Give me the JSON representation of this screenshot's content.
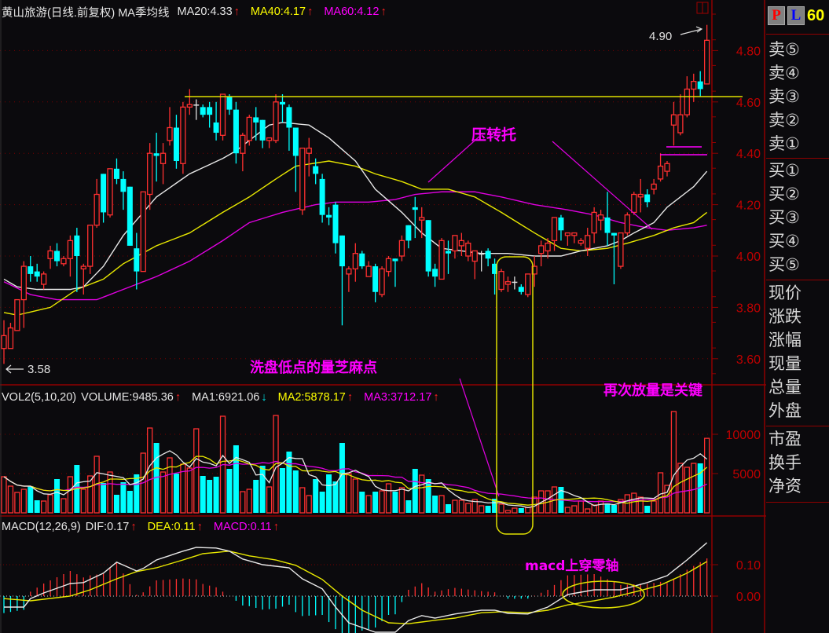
{
  "header": {
    "title": "黄山旅游(日线.前复权) MA季均线",
    "ma20": "MA20:4.33",
    "ma40": "MA40:4.17",
    "ma60": "MA60:4.12"
  },
  "volume_header": {
    "name": "VOL2(5,10,20)",
    "volume": "VOLUME:9485.36",
    "ma1": "MA1:6921.06",
    "ma2": "MA2:5878.17",
    "ma3": "MA3:3712.17"
  },
  "macd_header": {
    "name": "MACD(12,26,9)",
    "dif": "DIF:0.17",
    "dea": "DEA:0.11",
    "macd": "MACD:0.11"
  },
  "right_panel": {
    "p_button": "P",
    "l_button": "L",
    "period": "60",
    "sell": [
      "卖⑤",
      "卖④",
      "卖③",
      "卖②",
      "卖①"
    ],
    "buy": [
      "买①",
      "买②",
      "买③",
      "买④",
      "买⑤"
    ],
    "quote": [
      "现价",
      "涨跌",
      "涨幅",
      "现量",
      "总量",
      "外盘"
    ],
    "fundamentals": [
      "市盈",
      "换手",
      "净资"
    ]
  },
  "annotations": {
    "high_label": "4.90",
    "low_label": "3.58",
    "support_resistance": "压转托",
    "washout_volume": "洗盘低点的量芝麻点",
    "volume_key": "再次放量是关键",
    "macd_cross": "macd上穿零轴"
  },
  "colors": {
    "up": "#ff3030",
    "down": "#00ffff",
    "ma20": "#e8e8e8",
    "ma40": "#e8e800",
    "ma60": "#e000e0",
    "axis": "#c00000",
    "annotation": "#ff00ff"
  },
  "chart_data": {
    "type": "candlestick",
    "title": "黄山旅游(日线.前复权)",
    "price_axis": {
      "ticks": [
        "4.80",
        "4.60",
        "4.40",
        "4.20",
        "4.00",
        "3.80",
        "3.60"
      ],
      "range": [
        3.55,
        4.95
      ]
    },
    "volume_axis": {
      "ticks": [
        "10000",
        "5000"
      ],
      "range": [
        0,
        10500
      ]
    },
    "macd_axis": {
      "ticks": [
        "0.10",
        "0.00"
      ]
    },
    "candles": [
      [
        3.64,
        3.75,
        3.58,
        3.69
      ],
      [
        3.64,
        3.74,
        3.64,
        3.72
      ],
      [
        3.71,
        3.83,
        3.71,
        3.83
      ],
      [
        3.83,
        3.98,
        3.72,
        3.96
      ],
      [
        3.96,
        4.0,
        3.9,
        3.93
      ],
      [
        3.94,
        3.97,
        3.9,
        3.92
      ],
      [
        3.89,
        3.94,
        3.87,
        3.93
      ],
      [
        3.99,
        4.04,
        3.95,
        4.02
      ],
      [
        4.02,
        4.05,
        3.96,
        3.98
      ],
      [
        3.97,
        4.0,
        3.96,
        3.99
      ],
      [
        3.99,
        4.08,
        3.92,
        4.06
      ],
      [
        4.08,
        4.11,
        3.86,
        4.0
      ],
      [
        3.95,
        3.97,
        3.85,
        3.96
      ],
      [
        3.96,
        4.12,
        3.93,
        4.12
      ],
      [
        4.12,
        4.3,
        4.11,
        4.24
      ],
      [
        4.32,
        4.32,
        4.13,
        4.17
      ],
      [
        4.16,
        4.34,
        4.15,
        4.34
      ],
      [
        4.34,
        4.38,
        4.28,
        4.3
      ],
      [
        4.3,
        4.33,
        4.18,
        4.25
      ],
      [
        4.27,
        4.27,
        4.04,
        4.04
      ],
      [
        4.03,
        4.09,
        3.87,
        3.94
      ],
      [
        3.94,
        4.25,
        3.94,
        4.25
      ],
      [
        4.24,
        4.44,
        4.18,
        4.4
      ],
      [
        4.4,
        4.48,
        4.29,
        4.39
      ],
      [
        4.36,
        4.44,
        4.28,
        4.4
      ],
      [
        4.45,
        4.58,
        4.43,
        4.5
      ],
      [
        4.5,
        4.55,
        4.34,
        4.37
      ],
      [
        4.36,
        4.6,
        4.32,
        4.58
      ],
      [
        4.58,
        4.65,
        4.55,
        4.59
      ],
      [
        4.59,
        4.61,
        4.53,
        4.59
      ],
      [
        4.58,
        4.59,
        4.54,
        4.55
      ],
      [
        4.58,
        4.6,
        4.5,
        4.55
      ],
      [
        4.52,
        4.6,
        4.45,
        4.48
      ],
      [
        4.47,
        4.63,
        4.45,
        4.63
      ],
      [
        4.62,
        4.63,
        4.55,
        4.57
      ],
      [
        4.57,
        4.6,
        4.36,
        4.4
      ],
      [
        4.4,
        4.48,
        4.33,
        4.47
      ],
      [
        4.45,
        4.55,
        4.43,
        4.54
      ],
      [
        4.54,
        4.58,
        4.45,
        4.52
      ],
      [
        4.53,
        4.53,
        4.42,
        4.45
      ],
      [
        4.45,
        4.46,
        4.42,
        4.46
      ],
      [
        4.45,
        4.63,
        4.44,
        4.6
      ],
      [
        4.6,
        4.63,
        4.52,
        4.59
      ],
      [
        4.58,
        4.59,
        4.41,
        4.5
      ],
      [
        4.5,
        4.5,
        4.25,
        4.39
      ],
      [
        4.18,
        4.42,
        4.16,
        4.42
      ],
      [
        4.4,
        4.46,
        4.31,
        4.42
      ],
      [
        4.35,
        4.38,
        4.28,
        4.32
      ],
      [
        4.3,
        4.32,
        4.13,
        4.16
      ],
      [
        4.16,
        4.19,
        4.12,
        4.15
      ],
      [
        4.2,
        4.21,
        4.01,
        4.05
      ],
      [
        4.08,
        4.08,
        3.73,
        3.96
      ],
      [
        3.93,
        3.96,
        3.86,
        3.95
      ],
      [
        3.95,
        4.05,
        3.9,
        4.01
      ],
      [
        4.01,
        4.02,
        3.95,
        3.96
      ],
      [
        3.92,
        3.98,
        3.92,
        3.96
      ],
      [
        3.96,
        3.97,
        3.82,
        3.86
      ],
      [
        3.85,
        3.96,
        3.84,
        3.95
      ],
      [
        3.94,
        4.0,
        3.92,
        3.99
      ],
      [
        3.99,
        3.99,
        3.88,
        3.98
      ],
      [
        4.0,
        4.08,
        3.98,
        4.06
      ],
      [
        4.12,
        4.12,
        4.03,
        4.06
      ],
      [
        4.19,
        4.23,
        4.07,
        4.18
      ],
      [
        4.14,
        4.19,
        4.07,
        4.15
      ],
      [
        4.14,
        4.14,
        3.92,
        3.94
      ],
      [
        3.95,
        3.97,
        3.88,
        3.92
      ],
      [
        3.91,
        4.07,
        3.91,
        4.06
      ],
      [
        4.02,
        4.06,
        3.93,
        4.01
      ],
      [
        4.02,
        4.08,
        3.99,
        4.08
      ],
      [
        4.04,
        4.09,
        4.0,
        4.06
      ],
      [
        4.0,
        4.06,
        3.98,
        4.05
      ],
      [
        3.98,
        4.02,
        3.91,
        4.02
      ],
      [
        4.01,
        4.02,
        3.94,
        4.01
      ],
      [
        4.02,
        4.03,
        3.96,
        3.99
      ],
      [
        3.97,
        3.99,
        3.85,
        3.93
      ],
      [
        3.87,
        3.95,
        3.86,
        3.94
      ],
      [
        3.89,
        3.92,
        3.86,
        3.9
      ],
      [
        3.9,
        3.92,
        3.87,
        3.9
      ],
      [
        3.88,
        3.89,
        3.85,
        3.86
      ],
      [
        3.85,
        3.93,
        3.84,
        3.93
      ],
      [
        3.93,
        4.0,
        3.88,
        3.96
      ],
      [
        4.01,
        4.06,
        3.96,
        4.04
      ],
      [
        4.02,
        4.07,
        3.99,
        4.05
      ],
      [
        4.06,
        4.15,
        4.02,
        4.15
      ],
      [
        4.15,
        4.16,
        4.06,
        4.1
      ],
      [
        4.08,
        4.09,
        4.04,
        4.09
      ],
      [
        4.08,
        4.09,
        4.05,
        4.09
      ],
      [
        4.05,
        4.07,
        4.04,
        4.06
      ],
      [
        4.03,
        4.11,
        4.0,
        4.08
      ],
      [
        4.09,
        4.19,
        4.05,
        4.17
      ],
      [
        4.14,
        4.18,
        4.1,
        4.16
      ],
      [
        4.15,
        4.25,
        4.04,
        4.09
      ],
      [
        4.09,
        4.09,
        3.89,
        4.08
      ],
      [
        3.96,
        4.09,
        3.95,
        4.09
      ],
      [
        4.09,
        4.17,
        4.08,
        4.16
      ],
      [
        4.17,
        4.25,
        4.16,
        4.24
      ],
      [
        4.23,
        4.3,
        4.17,
        4.24
      ],
      [
        4.24,
        4.26,
        4.19,
        4.21
      ],
      [
        4.26,
        4.3,
        4.24,
        4.28
      ],
      [
        4.3,
        4.4,
        4.29,
        4.35
      ],
      [
        4.33,
        4.37,
        4.31,
        4.36
      ],
      [
        4.51,
        4.6,
        4.43,
        4.55
      ],
      [
        4.48,
        4.63,
        4.47,
        4.55
      ],
      [
        4.55,
        4.7,
        4.54,
        4.65
      ],
      [
        4.65,
        4.71,
        4.6,
        4.68
      ],
      [
        4.68,
        4.72,
        4.62,
        4.65
      ],
      [
        4.67,
        4.9,
        4.67,
        4.84
      ]
    ],
    "volume": [
      4600,
      3400,
      2600,
      3000,
      3400,
      1600,
      1500,
      2300,
      4300,
      1800,
      4600,
      6100,
      3000,
      4700,
      7200,
      3800,
      5200,
      2300,
      3900,
      2800,
      4900,
      7600,
      10800,
      8900,
      5200,
      7000,
      5000,
      6200,
      5700,
      10700,
      4700,
      4200,
      4600,
      12300,
      5600,
      8600,
      2700,
      3000,
      4200,
      6000,
      3300,
      12400,
      5700,
      7800,
      5400,
      3200,
      2200,
      4300,
      2700,
      4900,
      4000,
      8900,
      5000,
      4300,
      2700,
      2200,
      2700,
      2800,
      3700,
      2700,
      3200,
      1600,
      5600,
      4800,
      4300,
      2200,
      2200,
      1100,
      1600,
      1600,
      1200,
      1700,
      900,
      900,
      1800,
      1100,
      300,
      600,
      600,
      700,
      2000,
      2800,
      2800,
      3300,
      3300,
      700,
      900,
      1500,
      500,
      1000,
      1500,
      1200,
      1000,
      1700,
      2300,
      2500,
      2000,
      900,
      1500,
      5100,
      3500,
      12900,
      6300,
      5800,
      6300,
      6300,
      9485.36
    ],
    "ma20": [
      [
        0,
        3.91
      ],
      [
        2,
        3.88
      ],
      [
        5,
        3.87
      ],
      [
        10,
        3.87
      ],
      [
        12,
        3.88
      ],
      [
        15,
        3.96
      ],
      [
        18,
        4.08
      ],
      [
        23,
        4.23
      ],
      [
        28,
        4.32
      ],
      [
        33,
        4.38
      ],
      [
        35,
        4.41
      ],
      [
        40,
        4.51
      ],
      [
        42,
        4.52
      ],
      [
        46,
        4.51
      ],
      [
        49,
        4.46
      ],
      [
        53,
        4.37
      ],
      [
        56,
        4.26
      ],
      [
        60,
        4.17
      ],
      [
        63,
        4.09
      ],
      [
        66,
        4.03
      ],
      [
        69,
        4.02
      ],
      [
        72,
        4.01
      ],
      [
        76,
        4.01
      ],
      [
        80,
        4.0
      ],
      [
        84,
        4.0
      ],
      [
        87,
        4.02
      ],
      [
        91,
        4.04
      ],
      [
        93,
        4.06
      ],
      [
        95,
        4.09
      ],
      [
        98,
        4.13
      ],
      [
        100,
        4.19
      ],
      [
        104,
        4.27
      ],
      [
        106,
        4.33
      ]
    ],
    "ma40": [
      [
        0,
        3.78
      ],
      [
        2,
        3.77
      ],
      [
        7,
        3.8
      ],
      [
        11,
        3.87
      ],
      [
        15,
        3.91
      ],
      [
        18,
        3.97
      ],
      [
        23,
        4.04
      ],
      [
        28,
        4.09
      ],
      [
        33,
        4.17
      ],
      [
        37,
        4.23
      ],
      [
        41,
        4.3
      ],
      [
        44,
        4.35
      ],
      [
        49,
        4.37
      ],
      [
        53,
        4.35
      ],
      [
        56,
        4.32
      ],
      [
        60,
        4.29
      ],
      [
        63,
        4.26
      ],
      [
        67,
        4.26
      ],
      [
        71,
        4.23
      ],
      [
        75,
        4.17
      ],
      [
        80,
        4.09
      ],
      [
        84,
        4.03
      ],
      [
        87,
        4.02
      ],
      [
        91,
        4.03
      ],
      [
        94,
        4.05
      ],
      [
        98,
        4.08
      ],
      [
        101,
        4.11
      ],
      [
        104,
        4.13
      ],
      [
        106,
        4.17
      ]
    ],
    "ma60": [
      [
        0,
        3.9
      ],
      [
        4,
        3.85
      ],
      [
        8,
        3.83
      ],
      [
        14,
        3.83
      ],
      [
        18,
        3.87
      ],
      [
        23,
        3.92
      ],
      [
        28,
        3.98
      ],
      [
        33,
        4.06
      ],
      [
        37,
        4.13
      ],
      [
        42,
        4.17
      ],
      [
        47,
        4.2
      ],
      [
        50,
        4.21
      ],
      [
        55,
        4.21
      ],
      [
        59,
        4.22
      ],
      [
        62,
        4.24
      ],
      [
        66,
        4.25
      ],
      [
        71,
        4.25
      ],
      [
        75,
        4.23
      ],
      [
        80,
        4.2
      ],
      [
        85,
        4.18
      ],
      [
        89,
        4.16
      ],
      [
        93,
        4.13
      ],
      [
        97,
        4.11
      ],
      [
        100,
        4.1
      ],
      [
        104,
        4.11
      ],
      [
        106,
        4.12
      ]
    ],
    "dif": [
      [
        0,
        -0.035
      ],
      [
        3,
        -0.035
      ],
      [
        4,
        -0.008
      ],
      [
        6,
        0.01
      ],
      [
        10,
        0.04
      ],
      [
        12,
        0.043
      ],
      [
        15,
        0.073
      ],
      [
        17,
        0.108
      ],
      [
        20,
        0.08
      ],
      [
        21,
        0.088
      ],
      [
        23,
        0.115
      ],
      [
        27,
        0.143
      ],
      [
        29,
        0.155
      ],
      [
        32,
        0.153
      ],
      [
        34,
        0.143
      ],
      [
        36,
        0.118
      ],
      [
        39,
        0.1
      ],
      [
        43,
        0.09
      ],
      [
        45,
        0.055
      ],
      [
        48,
        0.023
      ],
      [
        50,
        -0.035
      ],
      [
        52,
        -0.085
      ],
      [
        56,
        -0.115
      ],
      [
        59,
        -0.115
      ],
      [
        61,
        -0.078
      ],
      [
        63,
        -0.062
      ],
      [
        65,
        -0.07
      ],
      [
        68,
        -0.057
      ],
      [
        72,
        -0.045
      ],
      [
        74,
        -0.045
      ],
      [
        76,
        -0.055
      ],
      [
        79,
        -0.057
      ],
      [
        82,
        -0.035
      ],
      [
        85,
        0.005
      ],
      [
        89,
        0.02
      ],
      [
        93,
        0.02
      ],
      [
        97,
        0.043
      ],
      [
        100,
        0.065
      ],
      [
        103,
        0.115
      ],
      [
        106,
        0.17
      ]
    ],
    "dea": [
      [
        0,
        -0.008
      ],
      [
        4,
        -0.015
      ],
      [
        6,
        -0.01
      ],
      [
        10,
        0.0
      ],
      [
        13,
        0.02
      ],
      [
        17,
        0.055
      ],
      [
        20,
        0.078
      ],
      [
        23,
        0.09
      ],
      [
        27,
        0.115
      ],
      [
        30,
        0.135
      ],
      [
        34,
        0.143
      ],
      [
        37,
        0.128
      ],
      [
        41,
        0.115
      ],
      [
        44,
        0.098
      ],
      [
        48,
        0.053
      ],
      [
        51,
        0.0
      ],
      [
        54,
        -0.045
      ],
      [
        58,
        -0.085
      ],
      [
        61,
        -0.088
      ],
      [
        65,
        -0.077
      ],
      [
        68,
        -0.07
      ],
      [
        72,
        -0.053
      ],
      [
        75,
        -0.05
      ],
      [
        79,
        -0.053
      ],
      [
        82,
        -0.045
      ],
      [
        85,
        -0.028
      ],
      [
        89,
        -0.015
      ],
      [
        92,
        -0.003
      ],
      [
        96,
        0.018
      ],
      [
        99,
        0.035
      ],
      [
        103,
        0.073
      ],
      [
        106,
        0.11
      ]
    ],
    "resistance_level": 4.63,
    "high": 4.9,
    "low": 3.58
  }
}
